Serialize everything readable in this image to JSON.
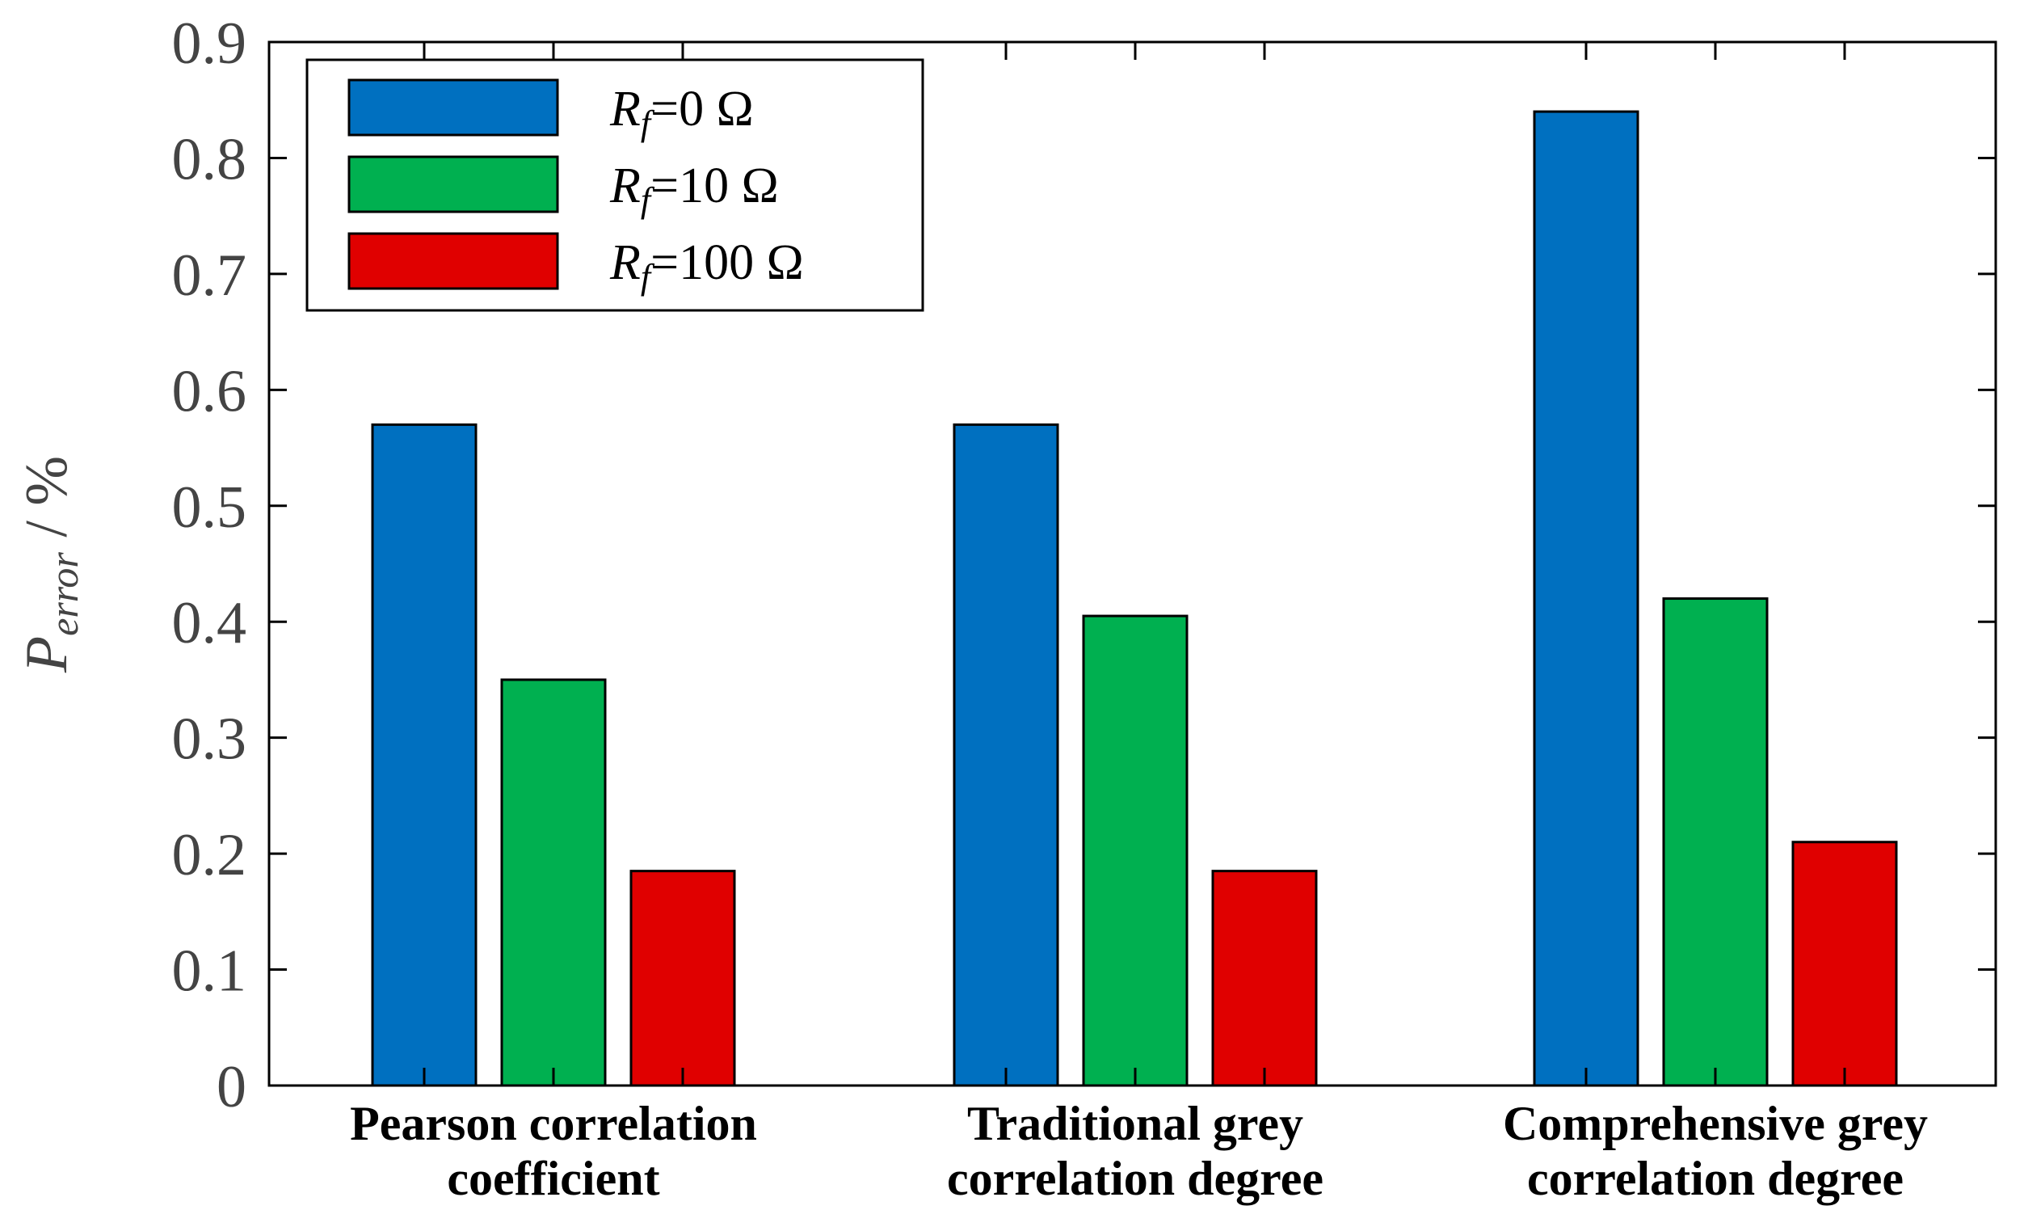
{
  "chart_data": {
    "type": "bar",
    "title": "",
    "xlabel": "",
    "ylabel": {
      "main": "P",
      "subscript": "error",
      "suffix": " / %"
    },
    "ylim": [
      0,
      0.9
    ],
    "yticks": [
      "0",
      "0.1",
      "0.2",
      "0.3",
      "0.4",
      "0.5",
      "0.6",
      "0.7",
      "0.8",
      "0.9"
    ],
    "categories": [
      [
        "Pearson correlation",
        "coefficient"
      ],
      [
        "Traditional grey",
        "correlation degree"
      ],
      [
        "Comprehensive grey",
        "correlation degree"
      ]
    ],
    "series": [
      {
        "name": "R_f=0 Ω",
        "label_main": "R",
        "label_sub": "f",
        "label_value": "=0 Ω",
        "color": "#0070C0",
        "values": [
          0.57,
          0.57,
          0.84
        ]
      },
      {
        "name": "R_f=10 Ω",
        "label_main": "R",
        "label_sub": "f",
        "label_value": "=10 Ω",
        "color": "#00B050",
        "values": [
          0.35,
          0.405,
          0.42
        ]
      },
      {
        "name": "R_f=100 Ω",
        "label_main": "R",
        "label_sub": "f",
        "label_value": "=100 Ω",
        "color": "#E00000",
        "values": [
          0.185,
          0.185,
          0.21
        ]
      }
    ],
    "legend_position": "top-left",
    "grid": false
  }
}
